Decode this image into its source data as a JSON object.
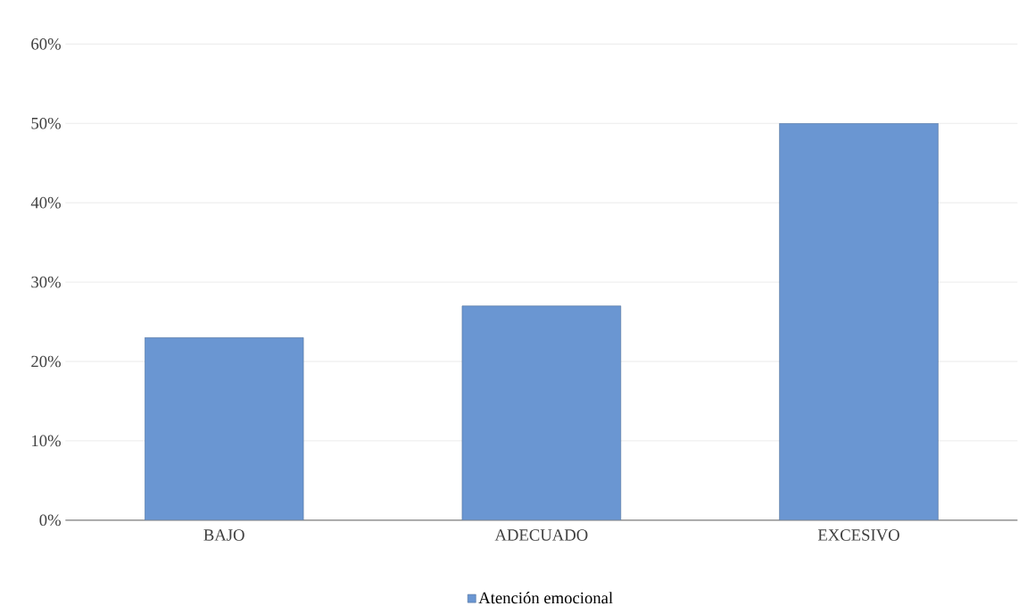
{
  "chart_data": {
    "type": "bar",
    "categories": [
      "BAJO",
      "ADECUADO",
      "EXCESIVO"
    ],
    "series": [
      {
        "name": "Atención emocional",
        "color": "#6a96d2",
        "values": [
          23,
          27,
          50
        ]
      }
    ],
    "ylim": [
      0,
      60
    ],
    "yticks": [
      {
        "value": 0,
        "label": "0%"
      },
      {
        "value": 10,
        "label": "10%"
      },
      {
        "value": 20,
        "label": "20%"
      },
      {
        "value": 30,
        "label": "30%"
      },
      {
        "value": 40,
        "label": "40%"
      },
      {
        "value": 50,
        "label": "50%"
      },
      {
        "value": 60,
        "label": "60%"
      }
    ],
    "grid": "y",
    "legend": "bottom"
  }
}
